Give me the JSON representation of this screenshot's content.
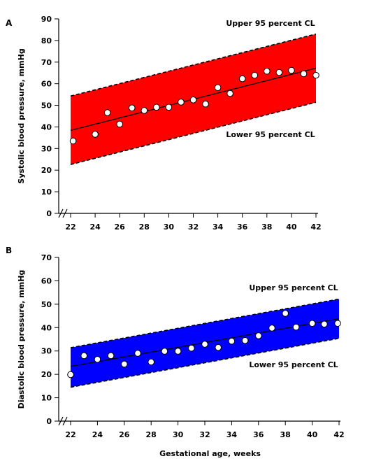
{
  "chart_data": [
    {
      "panel": "A",
      "type": "scatter",
      "ylabel": "Systolic blood pressure, mmHg",
      "xlabel": "",
      "xlim": [
        22,
        42
      ],
      "ylim": [
        0,
        90
      ],
      "xticks": [
        22,
        24,
        26,
        28,
        30,
        32,
        34,
        36,
        38,
        40,
        42
      ],
      "yticks": [
        0,
        10,
        20,
        30,
        40,
        50,
        60,
        70,
        80,
        90
      ],
      "band_color": "#ff0000",
      "band_label_upper": "Upper 95 percent CL",
      "band_label_lower": "Lower 95 percent CL",
      "band_upper": [
        [
          22,
          54.3
        ],
        [
          42,
          83.0
        ]
      ],
      "band_lower": [
        [
          22,
          22.6
        ],
        [
          42,
          51.4
        ]
      ],
      "regression_line": [
        [
          22,
          38.4
        ],
        [
          42,
          67.2
        ]
      ],
      "points": [
        [
          22.2,
          33.5
        ],
        [
          24,
          36.6
        ],
        [
          25,
          46.6
        ],
        [
          26,
          41.3
        ],
        [
          27,
          48.8
        ],
        [
          28,
          47.6
        ],
        [
          29,
          49.1
        ],
        [
          30,
          49.1
        ],
        [
          31,
          51.5
        ],
        [
          32,
          52.5
        ],
        [
          33,
          50.6
        ],
        [
          34,
          58.2
        ],
        [
          35,
          55.5
        ],
        [
          36,
          62.3
        ],
        [
          37,
          63.9
        ],
        [
          38,
          65.8
        ],
        [
          39,
          65.2
        ],
        [
          40,
          66.2
        ],
        [
          41,
          64.6
        ],
        [
          42,
          63.9
        ]
      ]
    },
    {
      "panel": "B",
      "type": "scatter",
      "ylabel": "Diastolic blood pressure, mmHg",
      "xlabel": "Gestational age, weeks",
      "xlim": [
        22,
        42
      ],
      "ylim": [
        0,
        70
      ],
      "xticks": [
        22,
        24,
        26,
        28,
        30,
        32,
        34,
        36,
        38,
        40,
        42
      ],
      "yticks": [
        0,
        10,
        20,
        30,
        40,
        50,
        60,
        70
      ],
      "band_color": "#0000ff",
      "band_label_upper": "Upper 95 percent CL",
      "band_label_lower": "Lower 95 percent CL",
      "band_upper": [
        [
          22,
          31.4
        ],
        [
          42,
          52.2
        ]
      ],
      "band_lower": [
        [
          22,
          14.5
        ],
        [
          42,
          35.4
        ]
      ],
      "regression_line": [
        [
          22,
          23.4
        ],
        [
          42,
          43.8
        ]
      ],
      "points": [
        [
          22,
          19.9
        ],
        [
          23,
          28.0
        ],
        [
          24,
          26.4
        ],
        [
          25,
          28.0
        ],
        [
          26,
          24.4
        ],
        [
          27,
          29.0
        ],
        [
          28,
          25.3
        ],
        [
          29,
          29.9
        ],
        [
          30,
          29.9
        ],
        [
          31,
          31.2
        ],
        [
          32,
          32.9
        ],
        [
          33,
          31.5
        ],
        [
          34,
          34.2
        ],
        [
          35,
          34.5
        ],
        [
          36,
          36.5
        ],
        [
          37,
          39.8
        ],
        [
          38,
          46.1
        ],
        [
          38.8,
          40.2
        ],
        [
          40,
          41.8
        ],
        [
          40.9,
          41.5
        ],
        [
          41.9,
          41.8
        ]
      ]
    }
  ]
}
